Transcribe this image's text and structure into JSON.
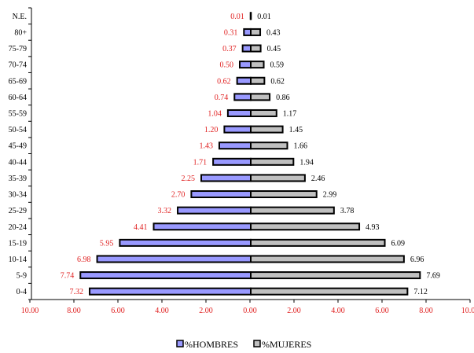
{
  "chart_data": {
    "type": "bar",
    "orientation": "horizontal",
    "title": "",
    "categories": [
      "N.E.",
      "80+",
      "75-79",
      "70-74",
      "65-69",
      "60-64",
      "55-59",
      "50-54",
      "45-49",
      "40-44",
      "35-39",
      "30-34",
      "25-29",
      "20-24",
      "15-19",
      "10-14",
      "5-9",
      "0-4"
    ],
    "series": [
      {
        "name": "%HOMBRES",
        "color": "#9999ff",
        "label_color": "#e02020",
        "values": [
          0.01,
          0.31,
          0.37,
          0.5,
          0.62,
          0.74,
          1.04,
          1.2,
          1.43,
          1.71,
          2.25,
          2.7,
          3.32,
          4.41,
          5.95,
          6.98,
          7.74,
          7.32
        ],
        "labels": [
          "0.01",
          "0.31",
          "0.37",
          "0.50",
          "0.62",
          "0.74",
          "1.04",
          "1.20",
          "1.43",
          "1.71",
          "2.25",
          "2.70",
          "3.32",
          "4.41",
          "5.95",
          "6.98",
          "7.74",
          "7.32"
        ]
      },
      {
        "name": "%MUJERES",
        "color": "#c0c0c0",
        "label_color": "#000000",
        "values": [
          0.01,
          0.43,
          0.45,
          0.59,
          0.62,
          0.86,
          1.17,
          1.45,
          1.66,
          1.94,
          2.46,
          2.99,
          3.78,
          4.93,
          6.09,
          6.96,
          7.69,
          7.12
        ],
        "labels": [
          "0.01",
          "0.43",
          "0.45",
          "0.59",
          "0.62",
          "0.86",
          "1.17",
          "1.45",
          "1.66",
          "1.94",
          "2.46",
          "2.99",
          "3.78",
          "4.93",
          "6.09",
          "6.96",
          "7.69",
          "7.12"
        ]
      }
    ],
    "xlim": [
      -10,
      10
    ],
    "x_ticks": [
      -10,
      -8,
      -6,
      -4,
      -2,
      0,
      2,
      4,
      6,
      8,
      10
    ],
    "x_tick_labels": [
      "10.00",
      "8.00",
      "6.00",
      "4.00",
      "2.00",
      "0.00",
      "2.00",
      "4.00",
      "6.00",
      "8.00",
      "10.00"
    ],
    "x_tick_color": "#e02020",
    "grid": false,
    "legend": "bottom-center"
  }
}
